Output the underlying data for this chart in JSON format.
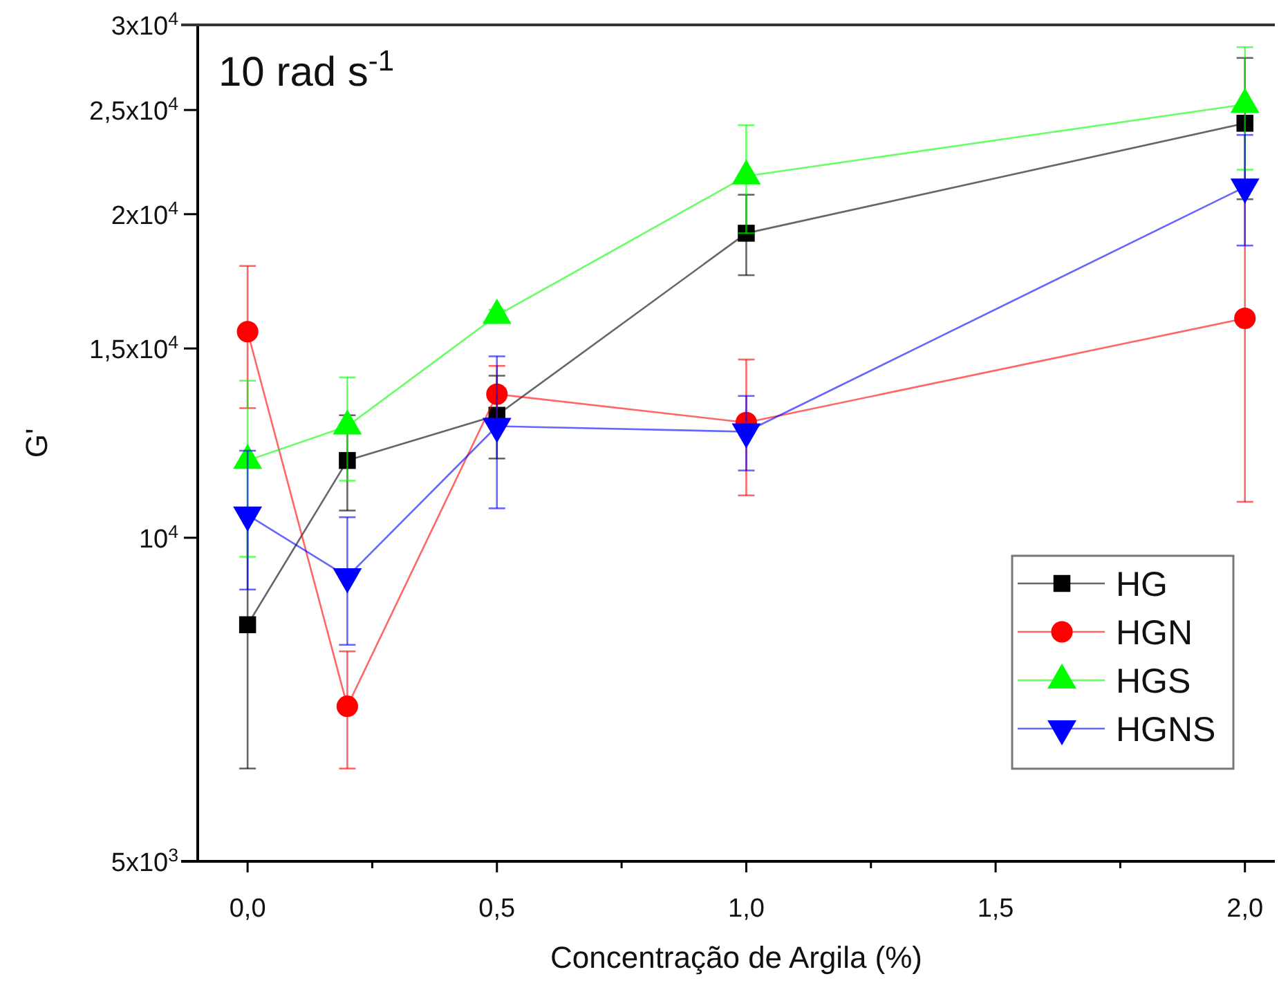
{
  "chart_data": {
    "type": "line",
    "xlabel": "Concentração de Argila (%)",
    "ylabel": "G'",
    "annotations": [
      "10 rad s$^{-1}$"
    ],
    "x": [
      0,
      0.2,
      0.5,
      1.0,
      2.0
    ],
    "series": [
      {
        "name": "HG",
        "color": "#000000",
        "marker": "square",
        "values": [
          8300,
          11800,
          13000,
          19200,
          24300
        ],
        "errors": [
          2200,
          1200,
          1150,
          1650,
          3650
        ]
      },
      {
        "name": "HGN",
        "color": "#ff0000",
        "marker": "circle",
        "values": [
          15550,
          6970,
          13600,
          12800,
          16000
        ],
        "errors": [
          2350,
          870,
          850,
          1850,
          5200
        ]
      },
      {
        "name": "HGS",
        "color": "#00ff00",
        "marker": "triangle",
        "values": [
          11800,
          12700,
          16100,
          21700,
          25300
        ],
        "errors": [
          2200,
          1400,
          200,
          2500,
          3300
        ]
      },
      {
        "name": "HGNS",
        "color": "#0000ff",
        "marker": "triangle-down",
        "values": [
          10500,
          9200,
          12700,
          12550,
          21200
        ],
        "errors": [
          1550,
          1250,
          2050,
          1000,
          2500
        ]
      }
    ],
    "log": "y",
    "xlim": [
      -0.1,
      2.06
    ],
    "xticks": [
      {
        "value": 0,
        "label": "0,0"
      },
      {
        "value": 0.25,
        "label": null
      },
      {
        "value": 0.5,
        "label": "0,5"
      },
      {
        "value": 0.75,
        "label": null
      },
      {
        "value": 1.0,
        "label": "1,0"
      },
      {
        "value": 1.25,
        "label": null
      },
      {
        "value": 1.5,
        "label": "1,5"
      },
      {
        "value": 1.75,
        "label": null
      },
      {
        "value": 2.0,
        "label": "2,0"
      }
    ],
    "ylim": [
      5000,
      30000
    ],
    "yticks": [
      {
        "value": 5000,
        "label": "5x10$^{3}$"
      },
      {
        "value": 10000,
        "label": "10$^{4}$"
      },
      {
        "value": 15000,
        "label": "1,5x10$^{4}$"
      },
      {
        "value": 20000,
        "label": "2x10$^{4}$"
      },
      {
        "value": 25000,
        "label": "2,5x10$^{4}$"
      },
      {
        "value": 30000,
        "label": "3x10$^{4}$"
      }
    ],
    "grid": false,
    "legend": "bottom right"
  }
}
